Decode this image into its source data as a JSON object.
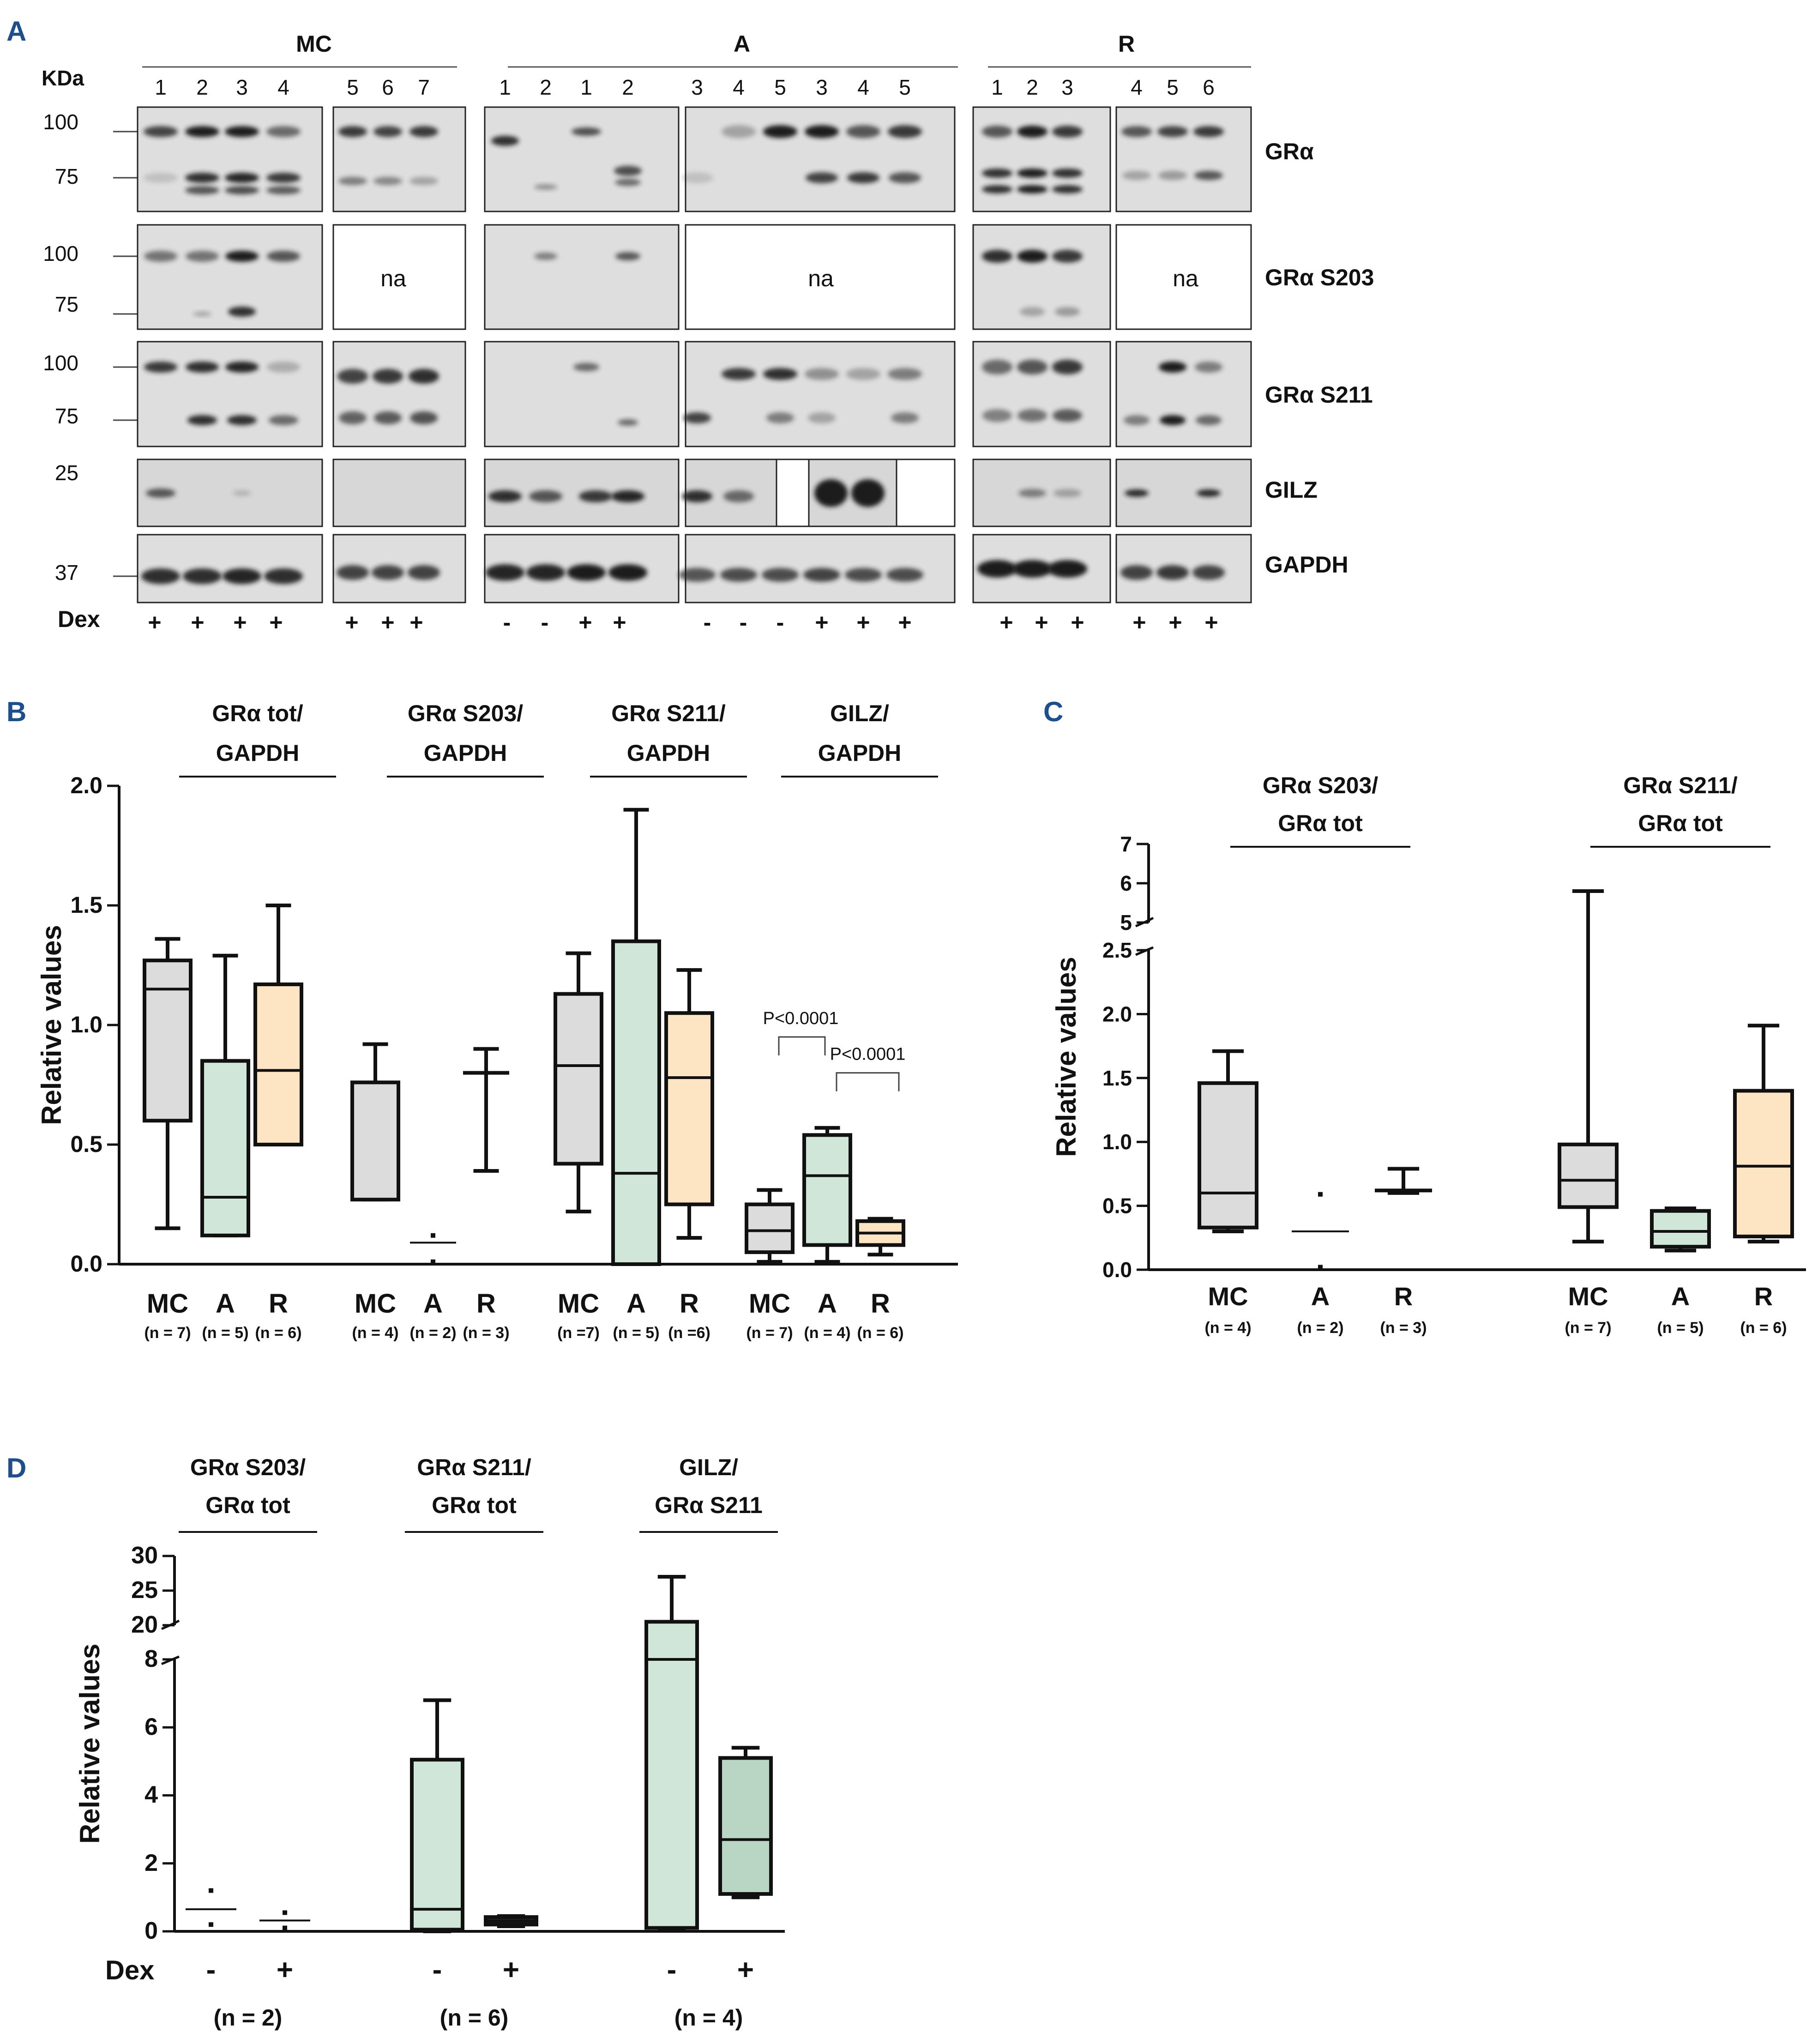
{
  "panel_labels": {
    "A": "A",
    "B": "B",
    "C": "C",
    "D": "D"
  },
  "western_blot": {
    "kda_label": "KDa",
    "groups": [
      {
        "name": "MC",
        "lanes": [
          [
            "1",
            "2",
            "3",
            "4"
          ],
          [
            "5",
            "6",
            "7"
          ]
        ],
        "dex": [
          [
            "+",
            "+",
            "+",
            "+"
          ],
          [
            "+",
            "+",
            "+"
          ]
        ]
      },
      {
        "name": "A",
        "lanes": [
          [
            "1",
            "2",
            "1",
            "2"
          ],
          [
            "3",
            "4",
            "5",
            "3",
            "4",
            "5"
          ]
        ],
        "dex": [
          [
            "-",
            "-",
            "+",
            "+"
          ],
          [
            "-",
            "-",
            "-",
            "+",
            "+",
            "+"
          ]
        ]
      },
      {
        "name": "R",
        "lanes": [
          [
            "1",
            "2",
            "3"
          ],
          [
            "4",
            "5",
            "6"
          ]
        ],
        "dex": [
          [
            "+",
            "+",
            "+"
          ],
          [
            "+",
            "+",
            "+"
          ]
        ]
      }
    ],
    "rows": [
      {
        "name": "GRα",
        "markers": [
          "100",
          "75"
        ]
      },
      {
        "name": "GRα S203",
        "markers": [
          "100",
          "75"
        ]
      },
      {
        "name": "GRα S211",
        "markers": [
          "100",
          "75"
        ]
      },
      {
        "name": "GILZ",
        "markers": [
          "25"
        ]
      },
      {
        "name": "GAPDH",
        "markers": [
          "37"
        ]
      }
    ],
    "na_label": "na",
    "dex_label": "Dex"
  },
  "chart_data": [
    {
      "panel": "B",
      "type": "box",
      "ylabel": "Relative values",
      "ylim": [
        0,
        2.0
      ],
      "yticks": [
        "0.0",
        "0.5",
        "1.0",
        "1.5",
        "2.0"
      ],
      "groups": [
        {
          "title": [
            "GRα tot/",
            "GAPDH"
          ],
          "boxes": [
            {
              "category": "MC",
              "n": "(n = 7)",
              "min": 0.15,
              "q1": 0.6,
              "median": 1.15,
              "q3": 1.27,
              "max": 1.36,
              "color": "#dcdcdc"
            },
            {
              "category": "A",
              "n": "(n = 5)",
              "min": 0.12,
              "q1": 0.12,
              "median": 0.28,
              "q3": 0.85,
              "max": 1.29,
              "color": "#cfe6d8"
            },
            {
              "category": "R",
              "n": "(n = 6)",
              "min": 0.5,
              "q1": 0.5,
              "median": 0.81,
              "q3": 1.17,
              "max": 1.5,
              "color": "#fde4c2"
            }
          ]
        },
        {
          "title": [
            "GRα S203/",
            "GAPDH"
          ],
          "boxes": [
            {
              "category": "MC",
              "n": "(n = 4)",
              "min": 0.27,
              "q1": 0.27,
              "median": 0.27,
              "q3": 0.76,
              "max": 0.92,
              "color": "#dcdcdc"
            },
            {
              "category": "A",
              "n": "(n = 2)",
              "points": [
                0.12,
                0.01
              ],
              "median": 0.09
            },
            {
              "category": "R",
              "n": "(n = 3)",
              "min": 0.39,
              "q1": 0.8,
              "median": 0.8,
              "q3": 0.8,
              "max": 0.9
            }
          ]
        },
        {
          "title": [
            "GRα S211/",
            "GAPDH"
          ],
          "boxes": [
            {
              "category": "MC",
              "n": "(n =7)",
              "min": 0.22,
              "q1": 0.42,
              "median": 0.83,
              "q3": 1.13,
              "max": 1.3,
              "color": "#dcdcdc"
            },
            {
              "category": "A",
              "n": "(n = 5)",
              "min": 0.0,
              "q1": 0.0,
              "median": 0.38,
              "q3": 1.35,
              "max": 1.9,
              "color": "#cfe6d8"
            },
            {
              "category": "R",
              "n": "(n =6)",
              "min": 0.11,
              "q1": 0.25,
              "median": 0.78,
              "q3": 1.05,
              "max": 1.23,
              "color": "#fde4c2"
            }
          ]
        },
        {
          "title": [
            "GILZ/",
            "GAPDH"
          ],
          "boxes": [
            {
              "category": "MC",
              "n": "(n = 7)",
              "min": 0.01,
              "q1": 0.05,
              "median": 0.14,
              "q3": 0.25,
              "max": 0.31,
              "color": "#dcdcdc"
            },
            {
              "category": "A",
              "n": "(n = 4)",
              "min": 0.01,
              "q1": 0.08,
              "median": 0.37,
              "q3": 0.54,
              "max": 0.57,
              "color": "#cfe6d8"
            },
            {
              "category": "R",
              "n": "(n = 6)",
              "min": 0.04,
              "q1": 0.08,
              "median": 0.13,
              "q3": 0.18,
              "max": 0.19,
              "color": "#fde4c2"
            }
          ]
        }
      ],
      "annotations": [
        {
          "text": "P<0.0001",
          "between": [
            "MC",
            "A"
          ],
          "group": 3
        },
        {
          "text": "P<0.0001",
          "between": [
            "A",
            "R"
          ],
          "group": 3
        }
      ]
    },
    {
      "panel": "C",
      "type": "box",
      "ylabel": "Relative values",
      "ylim": [
        0,
        7
      ],
      "axis_break": [
        2.5,
        5
      ],
      "yticks": [
        "0.0",
        "0.5",
        "1.0",
        "1.5",
        "2.0",
        "2.5",
        "5",
        "6",
        "7"
      ],
      "groups": [
        {
          "title": [
            "GRα S203/",
            "GRα tot"
          ],
          "boxes": [
            {
              "category": "MC",
              "n": "(n = 4)",
              "min": 0.3,
              "q1": 0.33,
              "median": 0.6,
              "q3": 1.46,
              "max": 1.71,
              "color": "#dcdcdc"
            },
            {
              "category": "A",
              "n": "(n = 2)",
              "points": [
                0.59,
                0.02
              ],
              "median": 0.3
            },
            {
              "category": "R",
              "n": "(n = 3)",
              "min": 0.6,
              "q1": 0.62,
              "median": 0.62,
              "q3": 0.63,
              "max": 0.79
            }
          ]
        },
        {
          "title": [
            "GRα S211/",
            "GRα tot"
          ],
          "boxes": [
            {
              "category": "MC",
              "n": "(n = 7)",
              "min": 0.22,
              "q1": 0.49,
              "median": 0.7,
              "q3": 0.98,
              "max": 5.8,
              "color": "#dcdcdc"
            },
            {
              "category": "A",
              "n": "(n = 5)",
              "min": 0.15,
              "q1": 0.18,
              "median": 0.3,
              "q3": 0.46,
              "max": 0.48,
              "color": "#cfe6d8"
            },
            {
              "category": "R",
              "n": "(n = 6)",
              "min": 0.22,
              "q1": 0.26,
              "median": 0.81,
              "q3": 1.4,
              "max": 1.91,
              "color": "#fde4c2"
            }
          ]
        }
      ]
    },
    {
      "panel": "D",
      "type": "box",
      "ylabel": "Relative values",
      "ylim": [
        0,
        30
      ],
      "axis_break": [
        8,
        20
      ],
      "yticks": [
        "0",
        "2",
        "4",
        "6",
        "8",
        "20",
        "25",
        "30"
      ],
      "xlabel_prefix": "Dex",
      "groups": [
        {
          "title": [
            "GRα S203/",
            "GRα tot"
          ],
          "n": "(n = 2)",
          "boxes": [
            {
              "category": "-",
              "points": [
                1.2,
                0.2
              ],
              "median": 0.65
            },
            {
              "category": "+",
              "points": [
                0.55,
                0.1
              ],
              "median": 0.32
            }
          ]
        },
        {
          "title": [
            "GRα S211/",
            "GRα tot"
          ],
          "n": "(n = 6)",
          "boxes": [
            {
              "category": "-",
              "min": 0.0,
              "q1": 0.05,
              "median": 0.65,
              "q3": 5.05,
              "max": 6.8,
              "color": "#cfe6d8"
            },
            {
              "category": "+",
              "min": 0.15,
              "q1": 0.2,
              "median": 0.3,
              "q3": 0.42,
              "max": 0.45,
              "color": "#222222"
            }
          ]
        },
        {
          "title": [
            "GILZ/",
            "GRα S211"
          ],
          "n": "(n = 4)",
          "boxes": [
            {
              "category": "-",
              "min": 0.05,
              "q1": 0.1,
              "median": 8.0,
              "q3": 20.5,
              "max": 27,
              "color": "#cfe6d8"
            },
            {
              "category": "+",
              "min": 1.0,
              "q1": 1.1,
              "median": 2.7,
              "q3": 5.1,
              "max": 5.4,
              "color": "#b9d6c4"
            }
          ]
        }
      ]
    }
  ]
}
